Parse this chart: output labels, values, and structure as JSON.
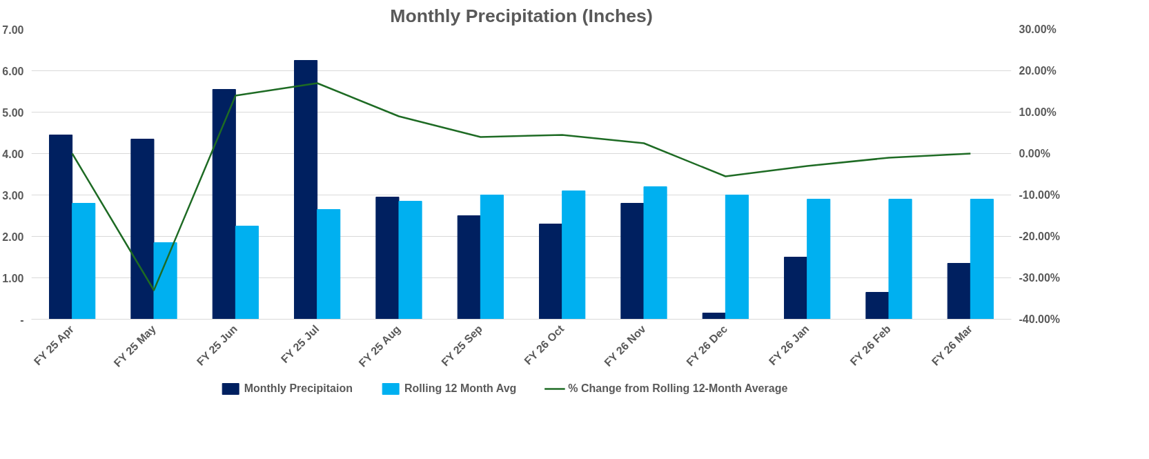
{
  "chart_data": {
    "type": "bar",
    "title": "Monthly Precipitation (Inches)",
    "categories": [
      "FY 25 Apr",
      "FY 25 May",
      "FY 25 Jun",
      "FY 25 Jul",
      "FY 25 Aug",
      "FY 25 Sep",
      "FY 26 Oct",
      "FY 26 Nov",
      "FY 26 Dec",
      "FY 26 Jan",
      "FY 26 Feb",
      "FY 26 Mar"
    ],
    "series": [
      {
        "name": "Monthly Precipitaion",
        "color": "#002060",
        "values": [
          4.45,
          4.35,
          5.55,
          6.25,
          2.95,
          2.5,
          2.3,
          2.8,
          0.15,
          1.5,
          0.65,
          1.35
        ]
      },
      {
        "name": "Rolling 12 Month Avg",
        "color": "#00b0f0",
        "values": [
          2.8,
          1.85,
          2.25,
          2.65,
          2.85,
          3,
          3.1,
          3.2,
          3,
          2.9,
          2.9,
          2.9
        ]
      },
      {
        "name": "% Change from Rolling 12-Month Average",
        "color": "#1e6b24",
        "type": "line",
        "axis": "y2",
        "values": [
          0,
          -33,
          14,
          17,
          9,
          4,
          4.5,
          2.5,
          -5.5,
          -3,
          -1,
          0
        ]
      }
    ],
    "ylim": [
      0,
      7
    ],
    "yticks": [
      {
        "value": 0,
        "label": "-"
      },
      {
        "value": 1,
        "label": "1.00"
      },
      {
        "value": 2,
        "label": "2.00"
      },
      {
        "value": 3,
        "label": "3.00"
      },
      {
        "value": 4,
        "label": "4.00"
      },
      {
        "value": 5,
        "label": "5.00"
      },
      {
        "value": 6,
        "label": "6.00"
      },
      {
        "value": 7,
        "label": "7.00"
      }
    ],
    "y2lim": [
      -40,
      30
    ],
    "y2ticks": [
      {
        "value": -40,
        "label": "-40.00%"
      },
      {
        "value": -30,
        "label": "-30.00%"
      },
      {
        "value": -20,
        "label": "-20.00%"
      },
      {
        "value": -10,
        "label": "-10.00%"
      },
      {
        "value": 0,
        "label": "0.00%"
      },
      {
        "value": 10,
        "label": "10.00%"
      },
      {
        "value": 20,
        "label": "20.00%"
      },
      {
        "value": 30,
        "label": "30.00%"
      }
    ],
    "grid": "y",
    "legend": "bottom"
  }
}
